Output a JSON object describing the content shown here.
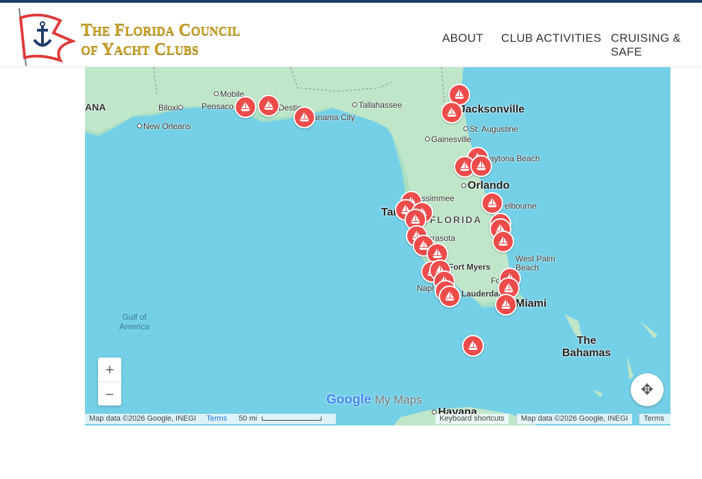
{
  "header": {
    "logo_text_line1": "The Florida Council",
    "logo_text_line2": "of Yacht Clubs",
    "nav": [
      "ABOUT",
      "CLUB ACTIVITIES",
      "CRUISING & SAFE"
    ]
  },
  "map": {
    "labels": {
      "mobile": "Mobile",
      "biloxi": "Biloxi",
      "pensacola": "Pensaco",
      "destin": "Destin",
      "panama": "anama City",
      "tallahassee": "Tallahassee",
      "new_orleans": "New Orleans",
      "ana": "ANA",
      "jacksonville": "Jacksonville",
      "st_augustine": "St. Augustine",
      "gainesville": "Gainesville",
      "daytona": "aytona Beach",
      "orlando": "Orlando",
      "kissimmee": "issimmee",
      "melbourne": "elbourne",
      "tampa": "Tar",
      "florida": "FLORIDA",
      "sarasota": "arasota",
      "fort_myers": "Fort Myers",
      "wpb": "West Palm\nBeach",
      "naples": "Napl",
      "fort_lauderdale": "Fo",
      "lauderdale": "Lauderdale",
      "miami": "Miami",
      "gulf": "Gulf of\nAmerica",
      "bahamas": "The\nBahamas",
      "havana": "Havana"
    },
    "zoom_in": "+",
    "zoom_out": "−",
    "logo_google": "Google",
    "logo_mymaps": "My Maps",
    "attribution_left": "Map data ©2026 Google, INEGI",
    "terms_left": "Terms",
    "scale": "50 mi",
    "keyboard": "Keyboard shortcuts",
    "attribution_right": "Map data ©2026 Google, INEGI",
    "terms_right": "Terms",
    "marker_icon": "sailboat-icon",
    "marker_color": "#ee4b4b"
  }
}
